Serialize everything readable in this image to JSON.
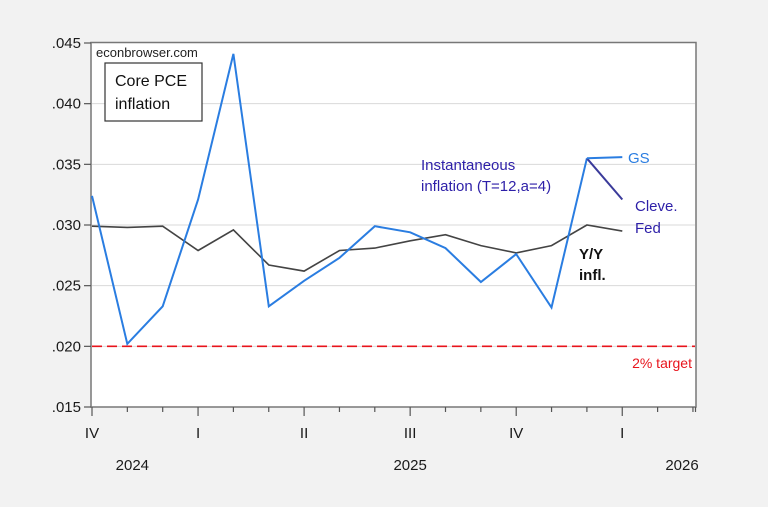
{
  "chart_data": {
    "type": "line",
    "title": "Core PCE inflation",
    "watermark": "econbrowser.com",
    "xlabel": "",
    "ylabel": "",
    "ylim": [
      0.015,
      0.045
    ],
    "yticks": [
      ".015",
      ".020",
      ".025",
      ".030",
      ".035",
      ".040",
      ".045"
    ],
    "ytick_values": [
      0.015,
      0.02,
      0.025,
      0.03,
      0.035,
      0.04,
      0.045
    ],
    "grid": true,
    "x": [
      "2024-10",
      "2024-11",
      "2024-12",
      "2025-01",
      "2025-02",
      "2025-03",
      "2025-04",
      "2025-05",
      "2025-06",
      "2025-07",
      "2025-08",
      "2025-09",
      "2025-10",
      "2025-11",
      "2025-12",
      "2026-01",
      "2026-02",
      "2026-03"
    ],
    "quarter_labels": [
      {
        "label": "IV",
        "month_index": 0
      },
      {
        "label": "I",
        "month_index": 3
      },
      {
        "label": "II",
        "month_index": 6
      },
      {
        "label": "III",
        "month_index": 9
      },
      {
        "label": "IV",
        "month_index": 12
      },
      {
        "label": "I",
        "month_index": 15
      }
    ],
    "year_labels": [
      {
        "label": "2024",
        "month_index": 1
      },
      {
        "label": "2025",
        "month_index": 9
      },
      {
        "label": "2026",
        "month_index": 17
      }
    ],
    "series": [
      {
        "name": "Instantaneous inflation (T=12,a=4)",
        "color": "#2a7de1",
        "values": [
          0.0324,
          0.0202,
          0.0233,
          0.0321,
          0.0441,
          0.0233,
          0.0254,
          0.0273,
          0.0299,
          0.0294,
          0.0281,
          0.0253,
          0.0276,
          0.0232,
          0.0355,
          null,
          null,
          null
        ]
      },
      {
        "name": "GS",
        "color": "#2a7de1",
        "values": [
          null,
          null,
          null,
          null,
          null,
          null,
          null,
          null,
          null,
          null,
          null,
          null,
          null,
          null,
          0.0355,
          0.0356,
          null,
          null
        ]
      },
      {
        "name": "Cleve. Fed",
        "color": "#3a3a9a",
        "values": [
          null,
          null,
          null,
          null,
          null,
          null,
          null,
          null,
          null,
          null,
          null,
          null,
          null,
          null,
          0.0355,
          0.0321,
          null,
          null
        ]
      },
      {
        "name": "Y/Y infl.",
        "color": "#444444",
        "values": [
          0.0299,
          0.0298,
          0.0299,
          0.0279,
          0.0296,
          0.0267,
          0.0262,
          0.0279,
          0.0281,
          0.0287,
          0.0292,
          0.0283,
          0.0277,
          0.0283,
          0.03,
          0.0295,
          null,
          null
        ]
      }
    ],
    "reference_lines": [
      {
        "name": "2% target",
        "value": 0.02,
        "color": "#e8141c",
        "style": "dashed"
      }
    ],
    "annotations": {
      "instantaneous_line1": "Instantaneous",
      "instantaneous_line2": "inflation (T=12,a=4)",
      "gs": "GS",
      "cleve_line1": "Cleve.",
      "cleve_line2": "Fed",
      "yy_line1": "Y/Y",
      "yy_line2": "infl.",
      "target": "2% target",
      "title_line1": "Core PCE",
      "title_line2": "inflation"
    },
    "colors": {
      "instantaneous_text": "#2d1fa8",
      "gs_text": "#2a7de1",
      "cleve_text": "#2d1fa8",
      "yy_text": "#111111",
      "target_text": "#e8141c"
    }
  }
}
